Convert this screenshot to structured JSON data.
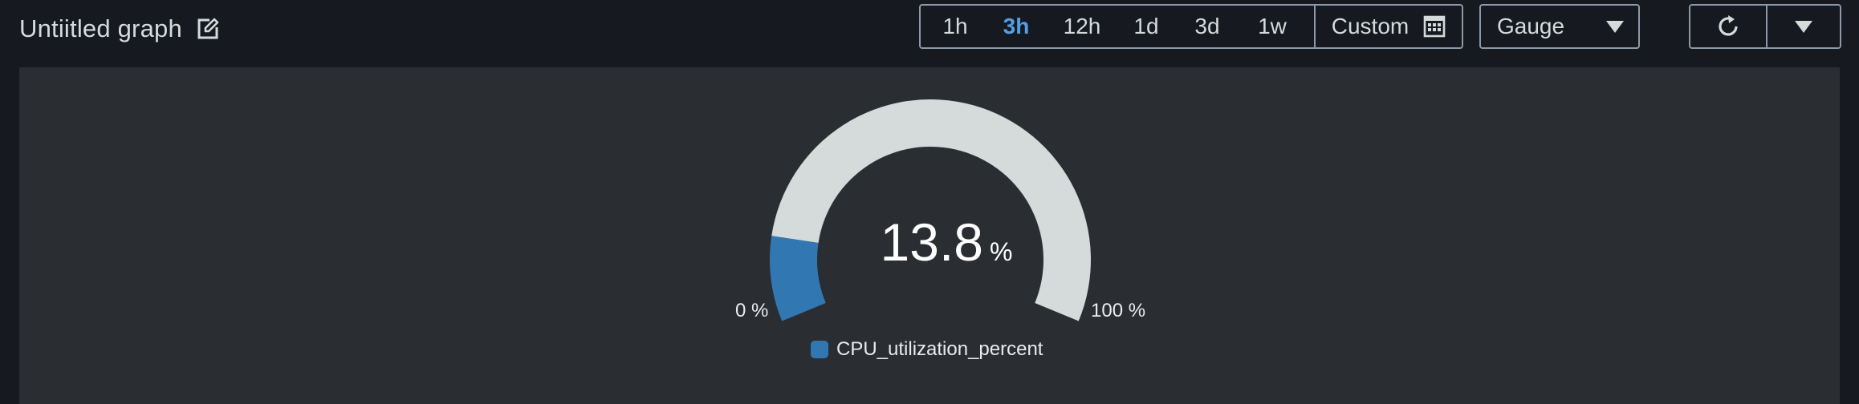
{
  "header": {
    "title": "Untiitled graph"
  },
  "time_ranges": {
    "options": [
      "1h",
      "3h",
      "12h",
      "1d",
      "3d",
      "1w"
    ],
    "selected": "3h",
    "custom_label": "Custom"
  },
  "widget_type": {
    "selected": "Gauge"
  },
  "icons": {
    "edit": "edit-icon",
    "calendar": "calendar-icon",
    "refresh": "refresh-icon",
    "dropdown": "chevron-down-icon"
  },
  "colors": {
    "accent": "#539fe5",
    "gauge_fill": "#3178b3",
    "gauge_track": "#d5dbdb"
  },
  "chart_data": {
    "type": "gauge",
    "value": 13.8,
    "value_text": "13.8",
    "unit": "%",
    "min": 0,
    "max": 100,
    "min_label": "0 %",
    "max_label": "100 %",
    "series": [
      {
        "name": "CPU_utilization_percent",
        "value": 13.8
      }
    ]
  }
}
